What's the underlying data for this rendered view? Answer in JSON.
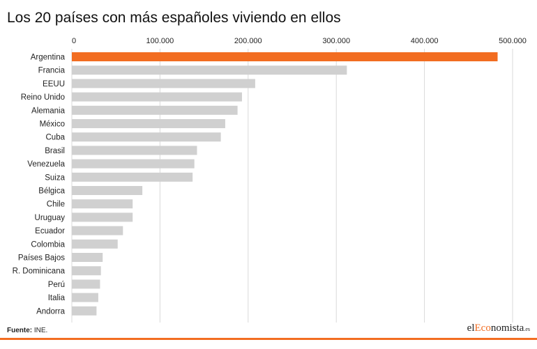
{
  "title": "Los 20 países con más españoles viviendo en ellos",
  "source_label": "Fuente:",
  "source_text": "INE.",
  "brand": {
    "pre": "el",
    "accent": "Eco",
    "main": "nomista",
    "suffix": ".es"
  },
  "colors": {
    "highlight": "#f26d21",
    "bar": "#d0d0d0",
    "grid": "#d9d9d9",
    "accent": "#f26d21"
  },
  "chart_data": {
    "type": "bar",
    "orientation": "horizontal",
    "title": "Los 20 países con más españoles viviendo en ellos",
    "categories": [
      "Argentina",
      "Francia",
      "EEUU",
      "Reino Unido",
      "Alemania",
      "México",
      "Cuba",
      "Brasil",
      "Venezuela",
      "Suiza",
      "Bélgica",
      "Chile",
      "Uruguay",
      "Ecuador",
      "Colombia",
      "Países Bajos",
      "R. Dominicana",
      "Perú",
      "Italia",
      "Andorra"
    ],
    "values": [
      483000,
      312000,
      208000,
      193000,
      188000,
      174000,
      169000,
      142000,
      139000,
      137000,
      80000,
      69000,
      69000,
      58000,
      52000,
      35000,
      33000,
      32000,
      30000,
      28000
    ],
    "highlight_category": "Argentina",
    "xlim": [
      0,
      500000
    ],
    "xticks": [
      0,
      100000,
      200000,
      300000,
      400000,
      500000
    ],
    "xtick_labels": [
      "0",
      "100.000",
      "200.000",
      "300.000",
      "400.000",
      "500.000"
    ],
    "xaxis_position": "top",
    "grid": true,
    "legend": "none"
  }
}
